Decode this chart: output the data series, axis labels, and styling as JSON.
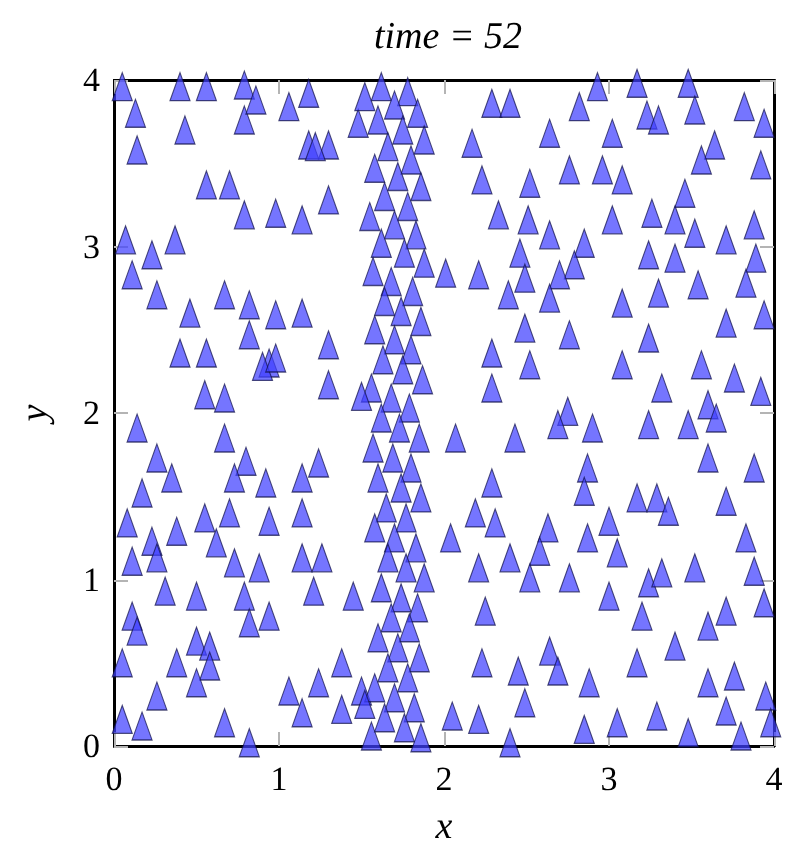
{
  "chart_data": {
    "type": "scatter",
    "title": "time = 52",
    "xlabel": "x",
    "ylabel": "y",
    "xlim": [
      0,
      4
    ],
    "ylim": [
      0,
      4
    ],
    "xticks": [
      0,
      1,
      2,
      3,
      4
    ],
    "yticks": [
      0,
      1,
      2,
      3,
      4
    ],
    "marker": "triangle",
    "color": "#4040ff",
    "x": [
      0.05,
      0.4,
      0.56,
      0.79,
      0.13,
      0.14,
      0.43,
      0.79,
      0.86,
      1.06,
      1.18,
      1.18,
      1.3,
      1.48,
      0.56,
      0.7,
      0.79,
      0.98,
      1.14,
      1.3,
      0.07,
      0.37,
      0.23,
      0.11,
      0.26,
      0.67,
      0.46,
      0.82,
      0.98,
      1.14,
      0.56,
      0.4,
      0.94,
      0.82,
      1.3,
      0.55,
      0.67,
      1.3,
      0.9,
      0.98,
      1.22,
      2.29,
      2.4,
      2.82,
      2.93,
      3.17,
      3.48,
      3.52,
      3.82,
      3.94,
      2.64,
      3.02,
      3.23,
      3.3,
      2.17,
      3.64,
      3.56,
      3.92,
      2.23,
      2.52,
      2.76,
      2.96,
      3.08,
      2.33,
      2.51,
      3.02,
      3.26,
      3.46,
      3.4,
      3.52,
      3.88,
      2.64,
      2.85,
      2.46,
      2.79,
      3.24,
      3.4,
      3.71,
      3.89,
      2.01,
      2.21,
      2.49,
      2.7,
      2.39,
      2.64,
      3.08,
      3.3,
      3.54,
      3.83,
      3.94,
      2.49,
      2.76,
      3.71,
      2.29,
      2.52,
      3.08,
      3.24,
      3.56,
      3.76,
      3.92,
      2.29,
      3.32,
      3.6,
      2.75,
      0.14,
      0.26,
      0.35,
      0.67,
      0.8,
      0.73,
      0.92,
      1.14,
      1.24,
      0.17,
      0.7,
      0.55,
      0.94,
      1.14,
      0.08,
      0.23,
      0.38,
      0.26,
      0.11,
      0.62,
      0.73,
      0.88,
      1.14,
      1.26,
      0.31,
      0.5,
      0.79,
      0.94,
      1.21,
      1.45,
      0.11,
      0.14,
      0.5,
      0.58,
      0.82,
      0.38,
      0.58,
      1.06,
      1.24,
      1.38,
      0.26,
      0.05,
      0.5,
      0.05,
      0.17,
      0.67,
      0.82,
      1.14,
      1.38,
      1.5,
      1.56,
      2.07,
      2.43,
      2.69,
      2.9,
      3.24,
      3.48,
      3.65,
      3.6,
      3.88,
      2.29,
      2.87,
      2.85,
      3.17,
      3.29,
      3.36,
      3.71,
      2.19,
      2.31,
      2.63,
      2.58,
      2.87,
      3.0,
      3.05,
      3.83,
      2.04,
      2.21,
      2.4,
      2.52,
      2.76,
      3.24,
      3.32,
      3.52,
      3.88,
      3.94,
      3.71,
      3.2,
      3.0,
      2.25,
      3.6,
      3.4,
      3.17,
      2.88,
      2.64,
      2.45,
      2.23,
      2.69,
      3.6,
      3.76,
      3.95,
      2.05,
      2.21,
      2.49,
      2.85,
      3.05,
      3.29,
      3.48,
      3.71,
      3.8,
      2.4,
      3.98,
      1.62,
      1.78,
      1.7,
      1.84,
      1.6,
      1.75,
      1.88,
      1.66,
      1.8,
      1.58,
      1.72,
      1.86,
      1.64,
      1.78,
      1.55,
      1.7,
      1.83,
      1.62,
      1.76,
      1.88,
      1.57,
      1.68,
      1.81,
      1.64,
      1.74,
      1.86,
      1.58,
      1.7,
      1.8,
      1.63,
      1.75,
      1.87,
      1.56,
      1.68,
      1.79,
      1.62,
      1.73,
      1.85,
      1.57,
      1.69,
      1.8,
      1.6,
      1.74,
      1.86,
      1.65,
      1.77,
      1.58,
      1.7,
      1.83,
      1.66,
      1.77,
      1.88,
      1.62,
      1.74,
      1.84,
      1.68,
      1.79,
      1.6,
      1.72,
      1.85,
      1.66,
      1.78,
      1.58,
      1.7,
      1.82,
      1.64,
      1.76,
      1.86,
      1.52,
      1.5,
      1.52
    ],
    "values": [
      3.96,
      3.96,
      3.96,
      3.97,
      3.8,
      3.58,
      3.7,
      3.76,
      3.88,
      3.84,
      3.92,
      3.61,
      3.61,
      3.74,
      3.37,
      3.37,
      3.19,
      3.2,
      3.16,
      3.28,
      3.04,
      3.04,
      2.95,
      2.83,
      2.71,
      2.71,
      2.6,
      2.65,
      2.59,
      2.6,
      2.36,
      2.36,
      2.3,
      2.47,
      2.41,
      2.11,
      2.09,
      2.17,
      2.28,
      2.33,
      3.6,
      3.86,
      3.86,
      3.84,
      3.96,
      3.98,
      3.98,
      3.82,
      3.84,
      3.74,
      3.68,
      3.68,
      3.79,
      3.76,
      3.62,
      3.61,
      3.52,
      3.49,
      3.4,
      3.38,
      3.46,
      3.46,
      3.4,
      3.19,
      3.16,
      3.16,
      3.2,
      3.32,
      3.16,
      3.08,
      3.13,
      3.07,
      3.02,
      2.96,
      2.89,
      2.95,
      2.93,
      3.04,
      2.93,
      2.84,
      2.83,
      2.81,
      2.83,
      2.71,
      2.69,
      2.66,
      2.72,
      2.77,
      2.78,
      2.59,
      2.51,
      2.47,
      2.54,
      2.36,
      2.29,
      2.29,
      2.45,
      2.29,
      2.21,
      2.13,
      2.15,
      2.15,
      2.05,
      2.01,
      1.91,
      1.73,
      1.61,
      1.85,
      1.71,
      1.61,
      1.58,
      1.61,
      1.7,
      1.52,
      1.4,
      1.37,
      1.35,
      1.4,
      1.34,
      1.23,
      1.29,
      1.13,
      1.11,
      1.22,
      1.1,
      1.07,
      1.13,
      1.13,
      0.93,
      0.9,
      0.9,
      0.78,
      0.93,
      0.9,
      0.78,
      0.69,
      0.63,
      0.6,
      0.74,
      0.5,
      0.48,
      0.33,
      0.38,
      0.5,
      0.3,
      0.5,
      0.38,
      0.16,
      0.12,
      0.14,
      0.02,
      0.2,
      0.22,
      0.33,
      0.06,
      1.85,
      1.85,
      1.93,
      1.91,
      1.93,
      1.93,
      1.97,
      1.73,
      1.67,
      1.58,
      1.67,
      1.53,
      1.49,
      1.49,
      1.41,
      1.47,
      1.4,
      1.34,
      1.31,
      1.17,
      1.25,
      1.35,
      1.16,
      1.25,
      1.25,
      1.07,
      1.13,
      1.01,
      1.01,
      0.98,
      1.04,
      1.07,
      1.05,
      0.86,
      0.81,
      0.78,
      0.9,
      0.81,
      0.72,
      0.6,
      0.5,
      0.38,
      0.57,
      0.45,
      0.5,
      0.45,
      0.38,
      0.42,
      0.3,
      0.18,
      0.16,
      0.26,
      0.1,
      0.14,
      0.18,
      0.08,
      0.21,
      0.06,
      0.02,
      0.14,
      3.96,
      3.93,
      3.85,
      3.8,
      3.76,
      3.7,
      3.64,
      3.6,
      3.52,
      3.47,
      3.42,
      3.36,
      3.3,
      3.24,
      3.18,
      3.13,
      3.07,
      3.02,
      2.96,
      2.9,
      2.85,
      2.79,
      2.73,
      2.67,
      2.61,
      2.55,
      2.5,
      2.44,
      2.38,
      2.32,
      2.26,
      2.2,
      2.15,
      2.09,
      2.03,
      1.97,
      1.91,
      1.85,
      1.79,
      1.73,
      1.67,
      1.61,
      1.55,
      1.49,
      1.43,
      1.37,
      1.31,
      1.25,
      1.19,
      1.13,
      1.07,
      1.01,
      0.95,
      0.89,
      0.83,
      0.77,
      0.71,
      0.65,
      0.59,
      0.53,
      0.47,
      0.41,
      0.35,
      0.29,
      0.23,
      0.17,
      0.11,
      0.05,
      0.25,
      2.1,
      3.9
    ]
  }
}
